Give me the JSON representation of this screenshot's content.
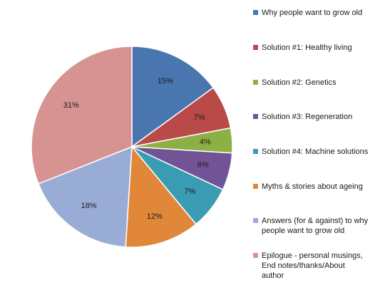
{
  "chart_data": {
    "type": "pie",
    "start_angle_deg": 0,
    "direction": "clockwise",
    "legend_position": "right",
    "slices": [
      {
        "name": "Why people want to grow old",
        "value": 15,
        "label": "15%",
        "color": "#4a76b0"
      },
      {
        "name": "Solution #1: Healthy living",
        "value": 7,
        "label": "7%",
        "color": "#b94a48"
      },
      {
        "name": "Solution #2: Genetics",
        "value": 4,
        "label": "4%",
        "color": "#8db045"
      },
      {
        "name": "Solution #3: Regeneration",
        "value": 6,
        "label": "6%",
        "color": "#725396"
      },
      {
        "name": "Solution #4: Machine solutions",
        "value": 7,
        "label": "7%",
        "color": "#3a9cb3"
      },
      {
        "name": "Myths & stories about ageing",
        "value": 12,
        "label": "12%",
        "color": "#e0873a"
      },
      {
        "name": "Answers (for & against) to why\npeople want to grow old",
        "value": 18,
        "label": "18%",
        "color": "#98acd6"
      },
      {
        "name": "Epilogue - personal musings,\nEnd notes/thanks/About\nauthor",
        "value": 31,
        "label": "31%",
        "color": "#d79292"
      }
    ]
  }
}
